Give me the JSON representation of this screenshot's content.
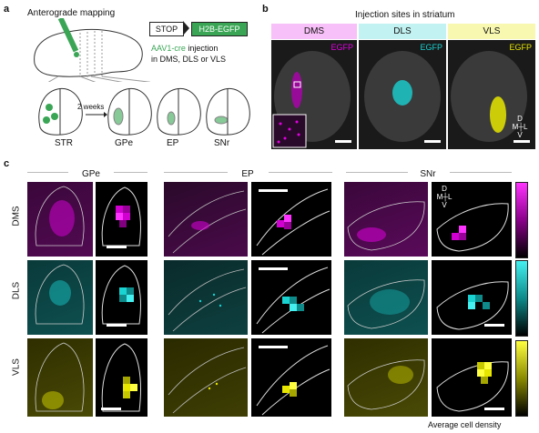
{
  "panel_a": {
    "label": "a",
    "title": "Anterograde mapping",
    "construct_stop": "STOP",
    "construct_reporter": "H2B-EGFP",
    "virus": "AAV1-cre",
    "injection_text": " injection",
    "injection_sites_text": "in DMS, DLS or VLS",
    "interval": "2 weeks",
    "regions": [
      "STR",
      "GPe",
      "EP",
      "SNr"
    ]
  },
  "panel_b": {
    "label": "b",
    "title": "Injection sites in striatum",
    "columns": [
      {
        "name": "DMS",
        "channel": "EGFP",
        "color": "#e100e1"
      },
      {
        "name": "DLS",
        "channel": "EGFP",
        "color": "#19d2d2"
      },
      {
        "name": "VLS",
        "channel": "EGFP",
        "color": "#e6e600"
      }
    ],
    "compass": {
      "d": "D",
      "v": "V",
      "m": "M",
      "l": "L"
    }
  },
  "panel_c": {
    "label": "c",
    "columns": [
      "GPe",
      "EP",
      "SNr"
    ],
    "rows": [
      {
        "name": "DMS",
        "color": "#e100e1"
      },
      {
        "name": "DLS",
        "color": "#19d2d2"
      },
      {
        "name": "VLS",
        "color": "#e6e600"
      }
    ],
    "compass": {
      "d": "D",
      "v": "V",
      "m": "M",
      "l": "L"
    },
    "colorbar_label": "Average cell density"
  }
}
